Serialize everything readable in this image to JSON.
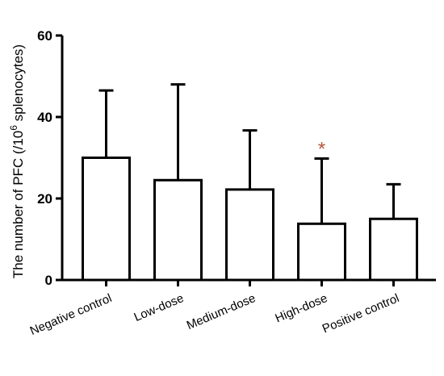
{
  "chart_data": {
    "type": "bar",
    "categories": [
      "Negative control",
      "Low-dose",
      "Medium-dose",
      "High-dose",
      "Positive control"
    ],
    "values": [
      30,
      24.5,
      22.2,
      13.8,
      15
    ],
    "error_upper": [
      46.5,
      48,
      36.7,
      29.8,
      23.5
    ],
    "ylabel_main": "The number of PFC (/10",
    "ylabel_sup": "6",
    "ylabel_tail": " splenocytes)",
    "ylim": [
      0,
      60
    ],
    "yticks": [
      0,
      20,
      40,
      60
    ],
    "significance": [
      {
        "category": "High-dose",
        "marker": "*"
      }
    ],
    "colors": {
      "bar_fill": "#ffffff",
      "stroke": "#000000",
      "significance": "#b5533f"
    },
    "grid": false,
    "legend": "none"
  }
}
